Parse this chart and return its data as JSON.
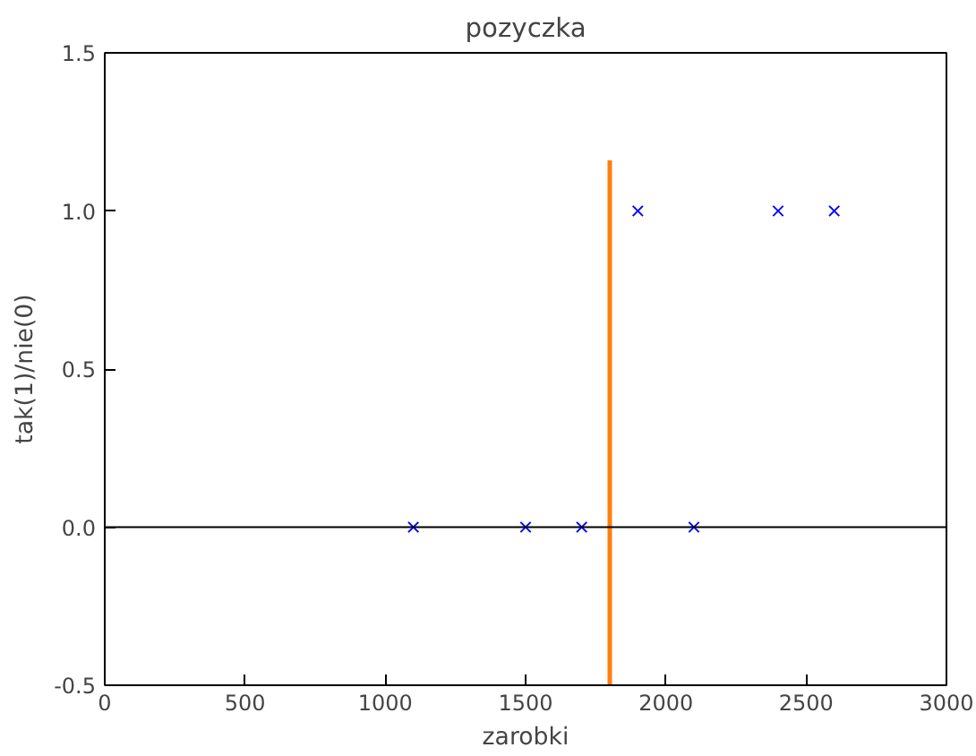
{
  "chart_data": {
    "type": "scatter",
    "title": "pozyczka",
    "xlabel": "zarobki",
    "ylabel": "tak(1)/nie(0)",
    "xlim": [
      0,
      3000
    ],
    "xticks": [
      0,
      500,
      1000,
      1500,
      2000,
      2500,
      3000
    ],
    "ylim": [
      -0.5,
      1.5
    ],
    "yticks": [
      -0.5,
      {
        "value": 0,
        "label": "0.0"
      },
      0.5,
      {
        "value": 1,
        "label": "1.0"
      },
      1.5
    ],
    "grid": false,
    "series": [
      {
        "color": "#0000ff",
        "marker": "cross",
        "x": [
          1100,
          1500,
          1700,
          2100,
          1900,
          2400,
          2600
        ],
        "values": [
          0,
          0,
          0,
          0,
          1,
          1,
          1
        ]
      },
      {
        "type": "line",
        "color": "#ff7f0e",
        "x": [
          1800,
          1800
        ],
        "values": [
          -0.5,
          1.16
        ],
        "line_style": "solid"
      }
    ],
    "ref_lines": [
      {
        "axis": "y",
        "value": 0,
        "color": "#000000",
        "line_style": "solid"
      }
    ]
  }
}
